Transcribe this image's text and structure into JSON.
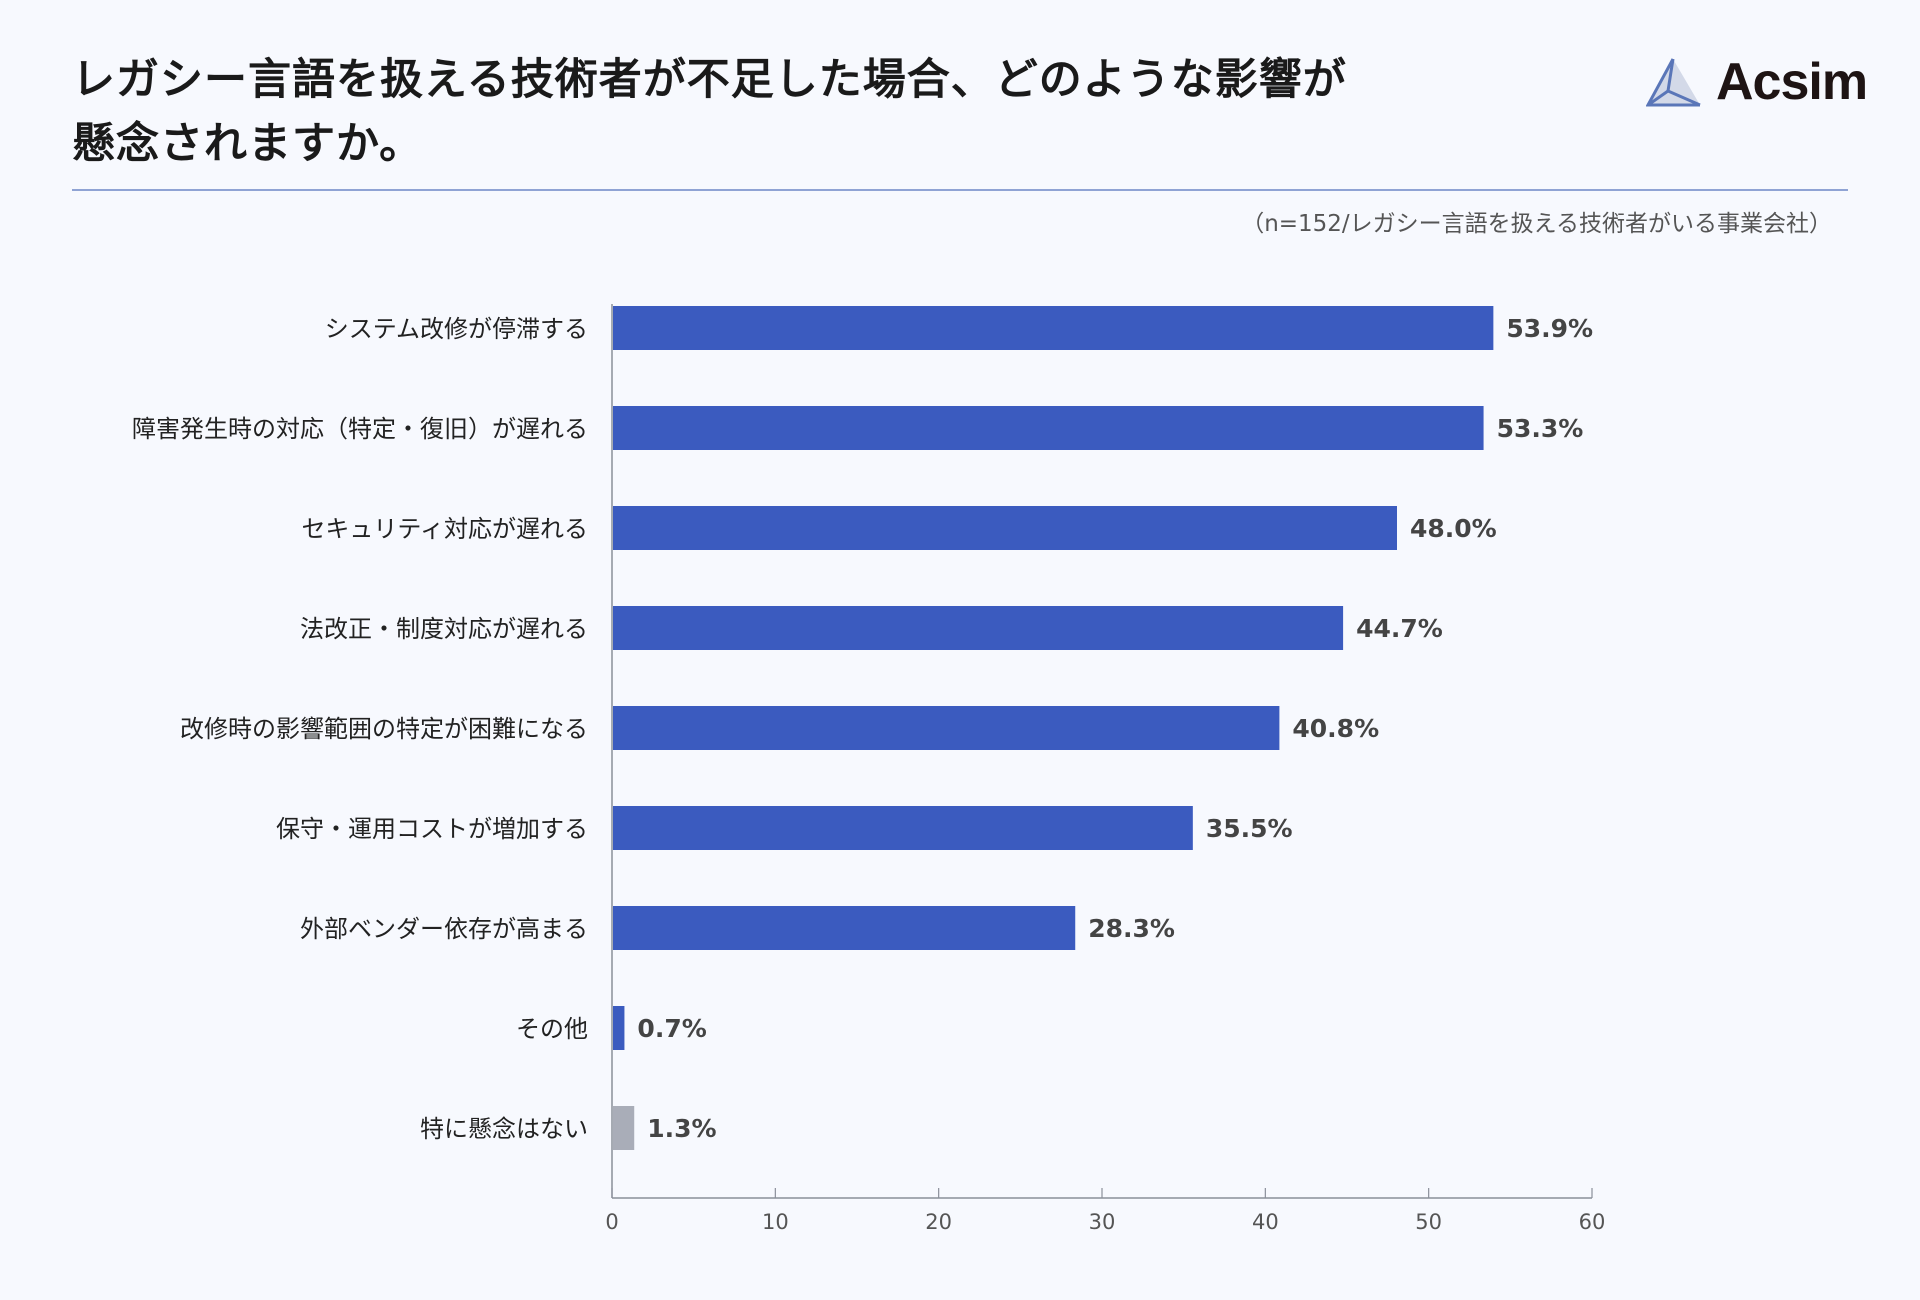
{
  "title": "レガシー言語を扱える技術者が不足した場合、どのような影響が懸念されますか。",
  "title_lines": [
    "レガシー言語を扱える技術者が不足した場合、どのような影響が",
    "懸念されますか。"
  ],
  "subtitle": "（n=152/レガシー言語を扱える技術者がいる事業会社）",
  "logo": {
    "text": "Acsim",
    "icon": "triangle-logo-icon"
  },
  "colors": {
    "bar": "#3b5bbf",
    "bar_none": "#a9adb8",
    "background": "#f7f9fe",
    "rule": "#8fa3d4"
  },
  "chart_data": {
    "type": "bar",
    "orientation": "horizontal",
    "categories": [
      "システム改修が停滞する",
      "障害発生時の対応（特定・復旧）が遅れる",
      "セキュリティ対応が遅れる",
      "法改正・制度対応が遅れる",
      "改修時の影響範囲の特定が困難になる",
      "保守・運用コストが増加する",
      "外部ベンダー依存が高まる",
      "その他",
      "特に懸念はない"
    ],
    "values": [
      53.9,
      53.3,
      48.0,
      44.7,
      40.8,
      35.5,
      28.3,
      0.7,
      1.3
    ],
    "value_labels": [
      "53.9%",
      "53.3%",
      "48.0%",
      "44.7%",
      "40.8%",
      "35.5%",
      "28.3%",
      "0.7%",
      "1.3%"
    ],
    "bar_colors": [
      "#3b5bbf",
      "#3b5bbf",
      "#3b5bbf",
      "#3b5bbf",
      "#3b5bbf",
      "#3b5bbf",
      "#3b5bbf",
      "#3b5bbf",
      "#a9adb8"
    ],
    "xlim": [
      0,
      60
    ],
    "xticks": [
      0,
      10,
      20,
      30,
      40,
      50,
      60
    ],
    "grid": false,
    "legend": "none"
  }
}
